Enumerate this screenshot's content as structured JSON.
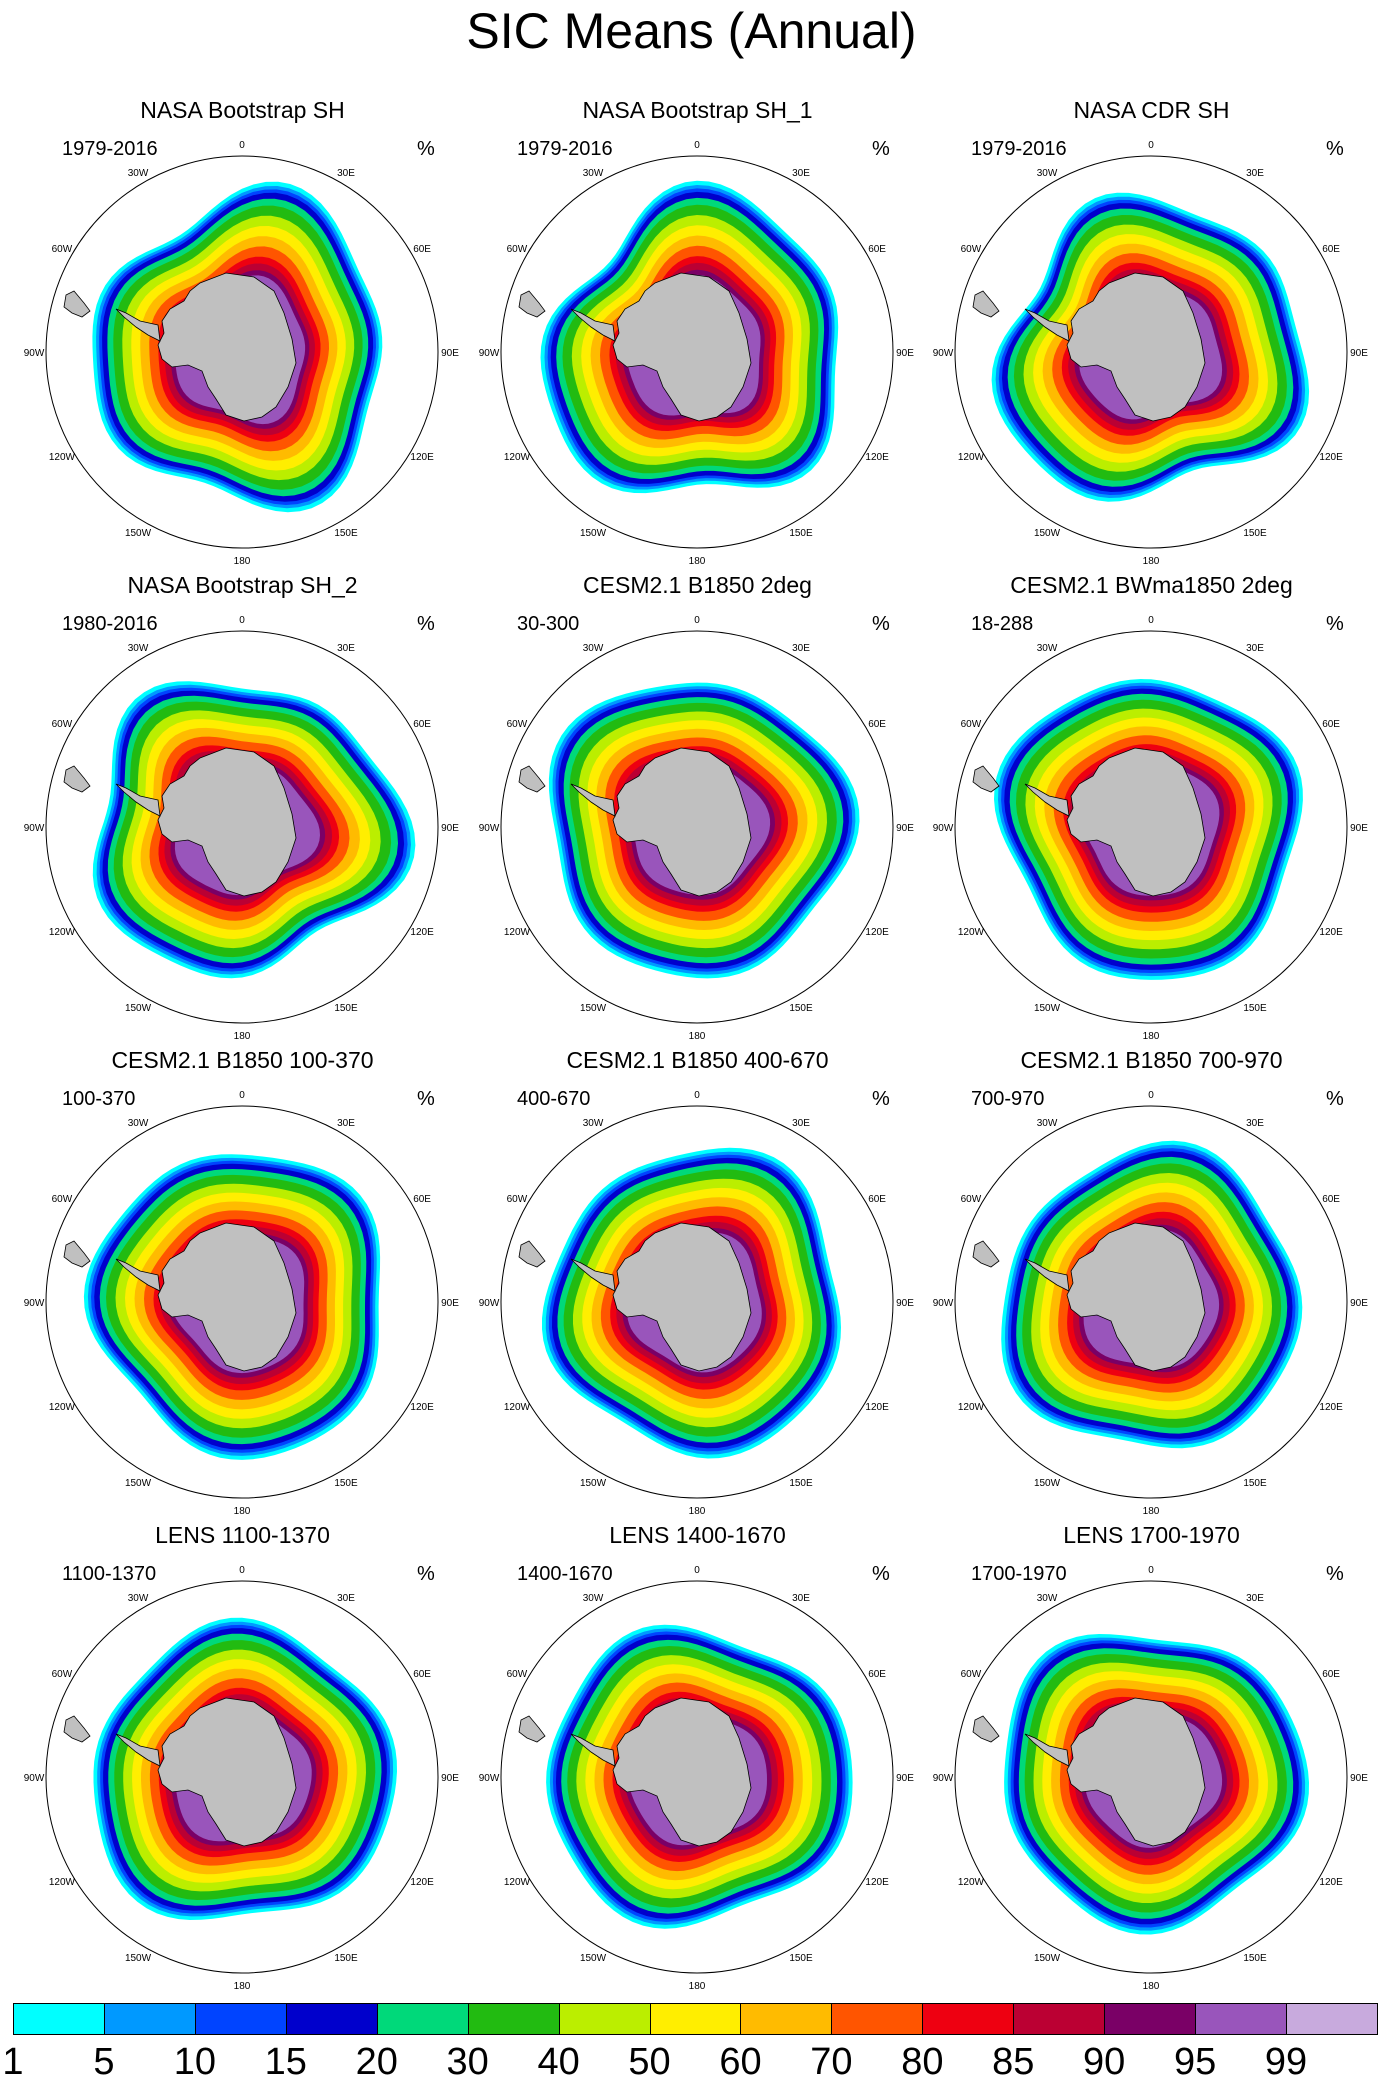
{
  "title": "SIC Means (Annual)",
  "unit": "%",
  "colorbar": {
    "labels": [
      "1",
      "5",
      "10",
      "15",
      "20",
      "30",
      "40",
      "50",
      "60",
      "70",
      "80",
      "85",
      "90",
      "95",
      "99"
    ],
    "colors": [
      "#00ffff",
      "#0099ff",
      "#0044ff",
      "#0000cc",
      "#00d97a",
      "#22bb11",
      "#bbee00",
      "#ffee00",
      "#ffbb00",
      "#ff5500",
      "#ee0011",
      "#bb0033",
      "#7a0066",
      "#9955bb",
      "#c8aadd"
    ]
  },
  "map_labels": {
    "lat0": "0",
    "e30": "30E",
    "e60": "60E",
    "e90": "90E",
    "e120": "120E",
    "e150": "150E",
    "lat180": "180",
    "w150": "150W",
    "w120": "120W",
    "w90": "90W",
    "w60": "60W",
    "w30": "30W"
  },
  "panels": [
    {
      "title": "NASA Bootstrap SH",
      "period": "1979-2016"
    },
    {
      "title": "NASA Bootstrap SH_1",
      "period": "1979-2016"
    },
    {
      "title": "NASA CDR SH",
      "period": "1979-2016"
    },
    {
      "title": "NASA Bootstrap SH_2",
      "period": "1980-2016"
    },
    {
      "title": "CESM2.1 B1850 2deg",
      "period": "30-300"
    },
    {
      "title": "CESM2.1 BWma1850 2deg",
      "period": "18-288"
    },
    {
      "title": "CESM2.1 B1850 100-370",
      "period": "100-370"
    },
    {
      "title": "CESM2.1 B1850 400-670",
      "period": "400-670"
    },
    {
      "title": "CESM2.1 B1850 700-970",
      "period": "700-970"
    },
    {
      "title": "LENS 1100-1370",
      "period": "1100-1370"
    },
    {
      "title": "LENS 1400-1670",
      "period": "1400-1670"
    },
    {
      "title": "LENS 1700-1970",
      "period": "1700-1970"
    }
  ]
}
